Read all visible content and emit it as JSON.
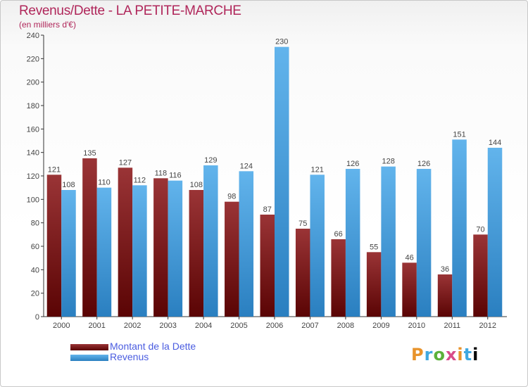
{
  "title": "Revenus/Dette - LA PETITE-MARCHE",
  "subtitle": "(en milliers d'€)",
  "logo": "Proxiti",
  "colors": {
    "dette_dark": "#5a0404",
    "dette_light": "#9a3436",
    "revenus_dark": "#2a7fc0",
    "revenus_light": "#62b4ec",
    "title": "#b0265a",
    "legend_text": "#4a5ce0"
  },
  "chart_data": {
    "type": "bar",
    "title": "Revenus/Dette - LA PETITE-MARCHE",
    "ylabel": "(en milliers d'€)",
    "categories": [
      "2000",
      "2001",
      "2002",
      "2003",
      "2004",
      "2005",
      "2006",
      "2007",
      "2008",
      "2009",
      "2010",
      "2011",
      "2012"
    ],
    "series": [
      {
        "name": "Montant de la Dette",
        "values": [
          121,
          135,
          127,
          118,
          108,
          98,
          87,
          75,
          66,
          55,
          46,
          36,
          70
        ]
      },
      {
        "name": "Revenus",
        "values": [
          108,
          110,
          112,
          116,
          129,
          124,
          230,
          121,
          126,
          128,
          126,
          151,
          144
        ]
      }
    ],
    "yticks": [
      0,
      20,
      40,
      60,
      80,
      100,
      120,
      140,
      160,
      180,
      200,
      220,
      240
    ],
    "ylim": [
      0,
      240
    ],
    "grid": false,
    "legend_position": "bottom-left"
  }
}
